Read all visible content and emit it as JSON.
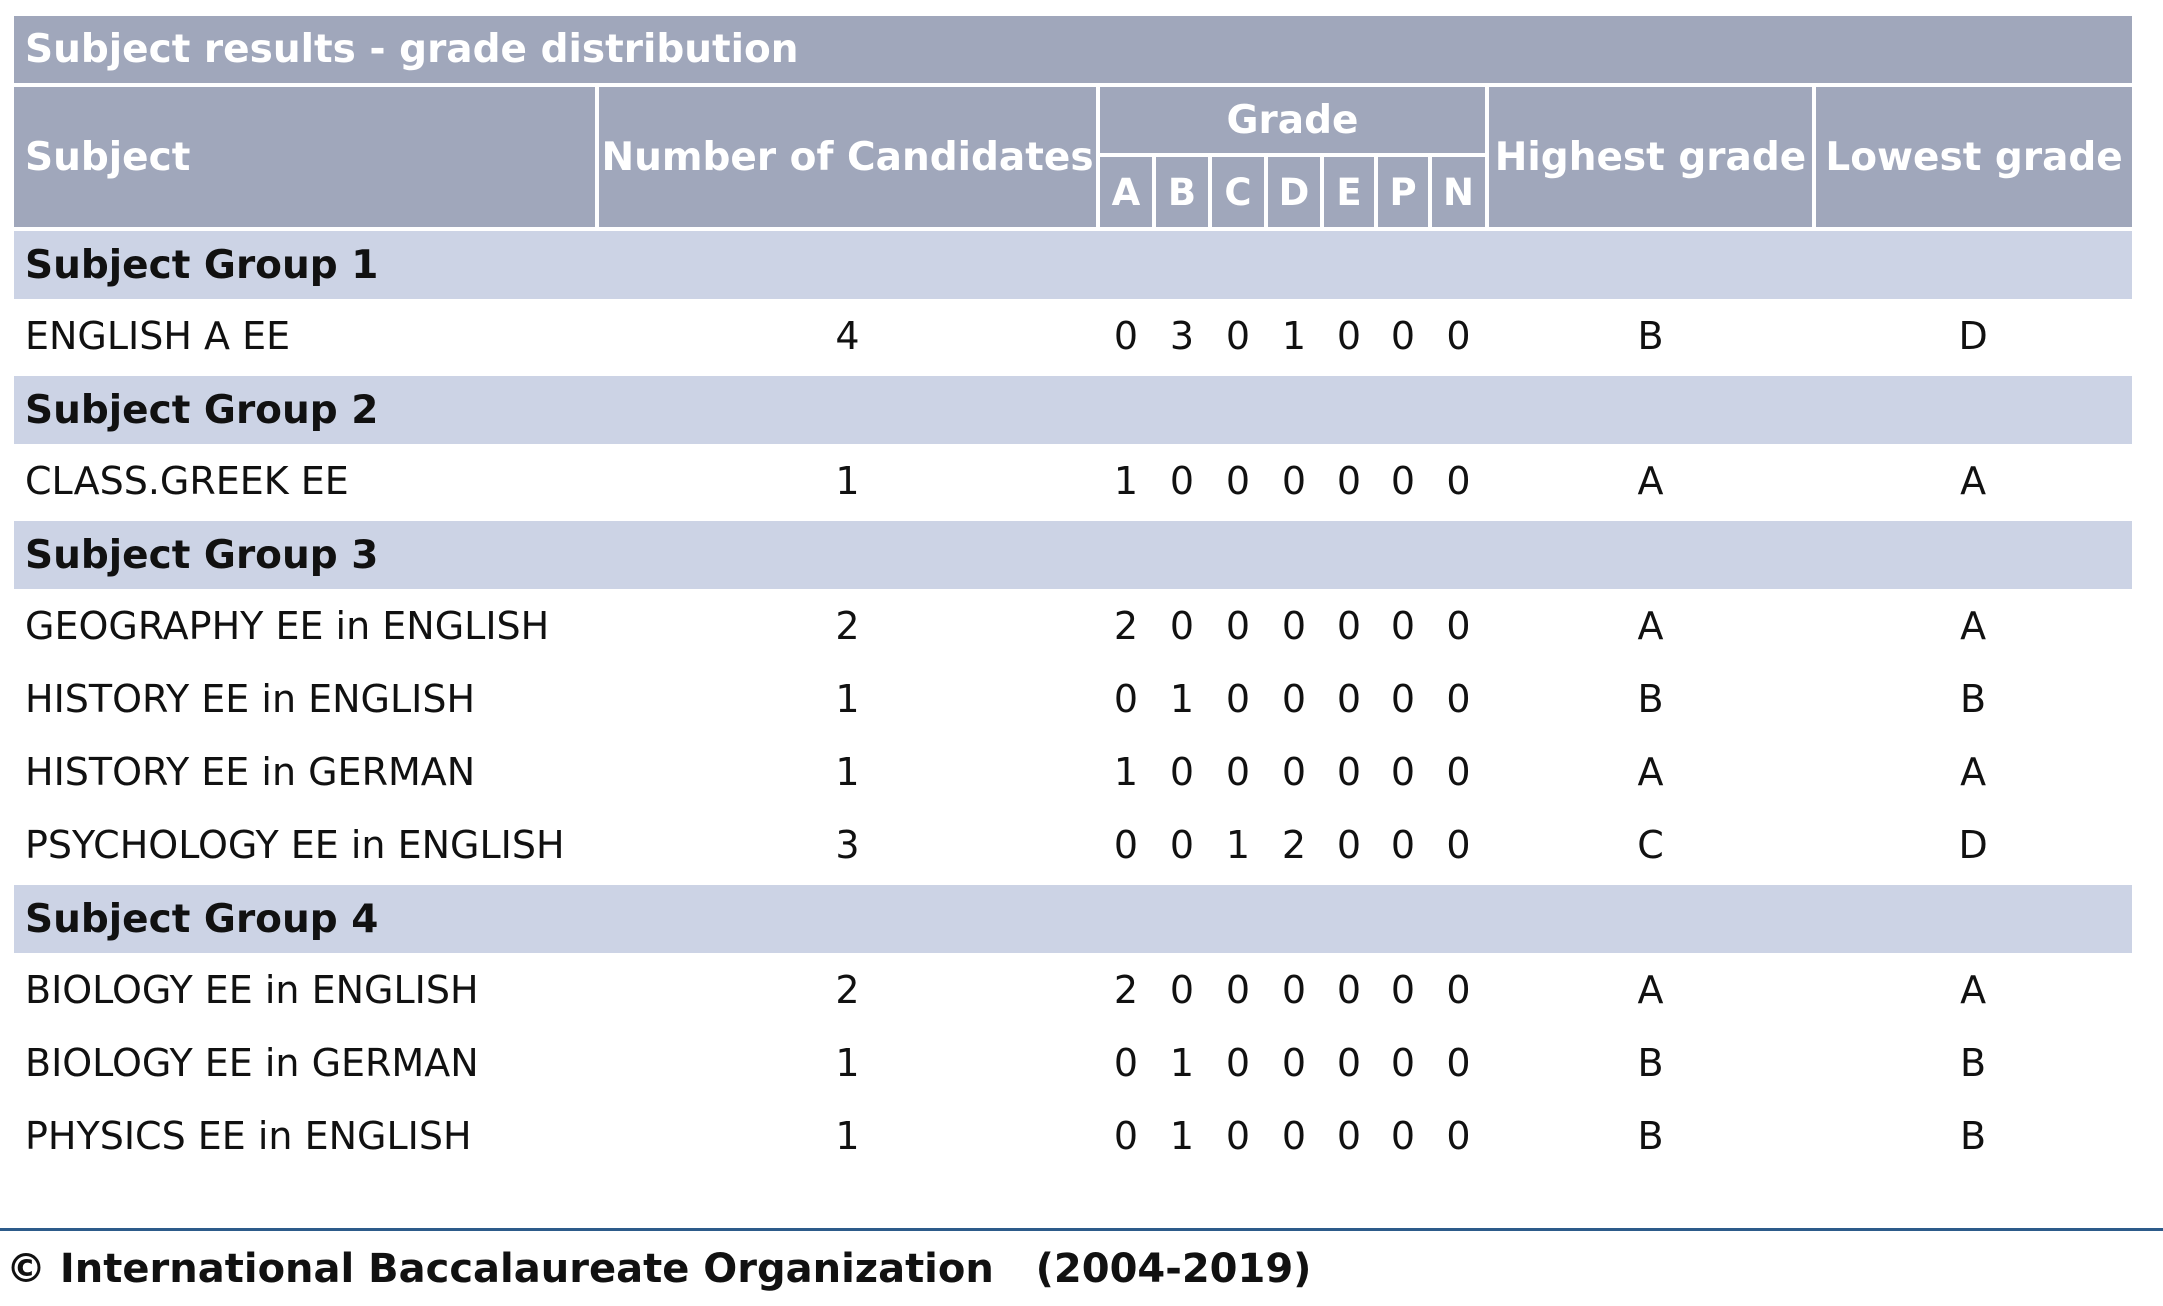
{
  "title": "Subject results - grade distribution",
  "headers": {
    "subject": "Subject",
    "candidates": "Number of Candidates",
    "grade": "Grade",
    "grade_letters": [
      "A",
      "B",
      "C",
      "D",
      "E",
      "P",
      "N"
    ],
    "highest": "Highest grade",
    "lowest": "Lowest grade"
  },
  "groups": [
    {
      "name": "Subject Group 1",
      "rows": [
        {
          "subject": "ENGLISH A EE",
          "candidates": "4",
          "grades": [
            "0",
            "3",
            "0",
            "1",
            "0",
            "0",
            "0"
          ],
          "highest": "B",
          "lowest": "D"
        }
      ]
    },
    {
      "name": "Subject Group 2",
      "rows": [
        {
          "subject": "CLASS.GREEK EE",
          "candidates": "1",
          "grades": [
            "1",
            "0",
            "0",
            "0",
            "0",
            "0",
            "0"
          ],
          "highest": "A",
          "lowest": "A"
        }
      ]
    },
    {
      "name": "Subject Group 3",
      "rows": [
        {
          "subject": "GEOGRAPHY EE in ENGLISH",
          "candidates": "2",
          "grades": [
            "2",
            "0",
            "0",
            "0",
            "0",
            "0",
            "0"
          ],
          "highest": "A",
          "lowest": "A"
        },
        {
          "subject": "HISTORY EE in ENGLISH",
          "candidates": "1",
          "grades": [
            "0",
            "1",
            "0",
            "0",
            "0",
            "0",
            "0"
          ],
          "highest": "B",
          "lowest": "B"
        },
        {
          "subject": "HISTORY EE in GERMAN",
          "candidates": "1",
          "grades": [
            "1",
            "0",
            "0",
            "0",
            "0",
            "0",
            "0"
          ],
          "highest": "A",
          "lowest": "A"
        },
        {
          "subject": "PSYCHOLOGY EE in ENGLISH",
          "candidates": "3",
          "grades": [
            "0",
            "0",
            "1",
            "2",
            "0",
            "0",
            "0"
          ],
          "highest": "C",
          "lowest": "D"
        }
      ]
    },
    {
      "name": "Subject Group 4",
      "rows": [
        {
          "subject": "BIOLOGY EE in ENGLISH",
          "candidates": "2",
          "grades": [
            "2",
            "0",
            "0",
            "0",
            "0",
            "0",
            "0"
          ],
          "highest": "A",
          "lowest": "A"
        },
        {
          "subject": "BIOLOGY EE in GERMAN",
          "candidates": "1",
          "grades": [
            "0",
            "1",
            "0",
            "0",
            "0",
            "0",
            "0"
          ],
          "highest": "B",
          "lowest": "B"
        },
        {
          "subject": "PHYSICS EE in ENGLISH",
          "candidates": "1",
          "grades": [
            "0",
            "1",
            "0",
            "0",
            "0",
            "0",
            "0"
          ],
          "highest": "B",
          "lowest": "B"
        }
      ]
    }
  ],
  "footer": "© International Baccalaureate Organization   (2004-2019)",
  "colors": {
    "header_bg": "#a0a7bb",
    "group_bg": "#ccd3e5",
    "footer_rule": "#2d5b8a"
  }
}
